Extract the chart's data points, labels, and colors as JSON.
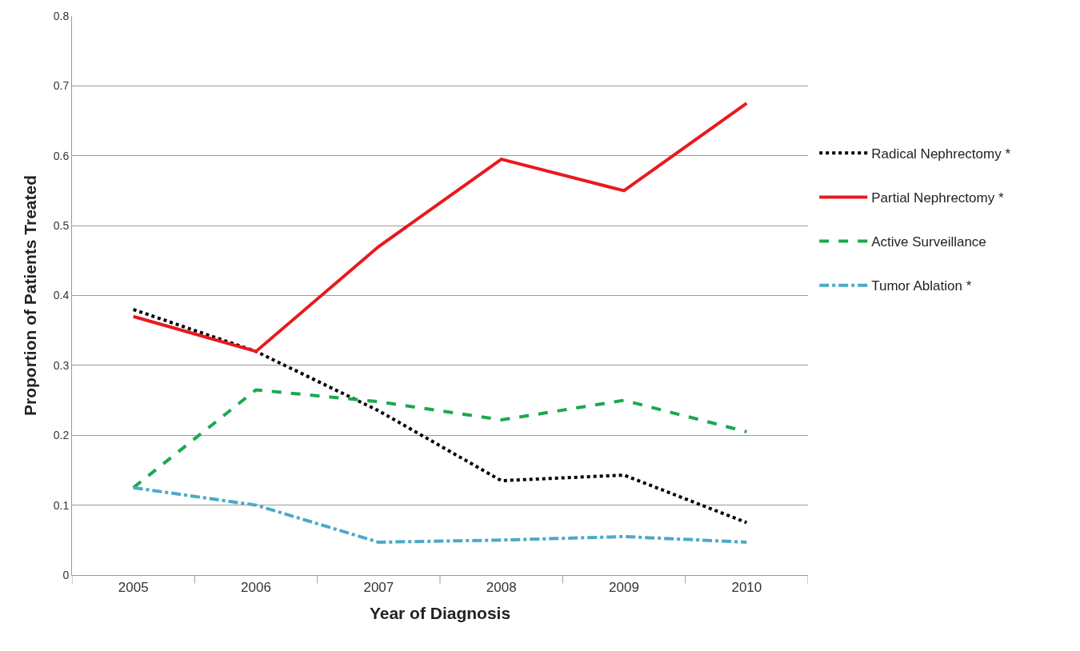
{
  "chart_data": {
    "type": "line",
    "xlabel": "Year of Diagnosis",
    "ylabel": "Proportion of Patients Treated",
    "categories": [
      "2005",
      "2006",
      "2007",
      "2008",
      "2009",
      "2010"
    ],
    "series": [
      {
        "name": "Radical Nephrectomy *",
        "color": "#000000",
        "line_style": "dotted",
        "values": [
          0.38,
          0.32,
          0.235,
          0.135,
          0.143,
          0.075
        ]
      },
      {
        "name": "Partial Nephrectomy *",
        "color": "#e8191e",
        "line_style": "solid",
        "values": [
          0.37,
          0.32,
          0.47,
          0.595,
          0.55,
          0.675
        ]
      },
      {
        "name": "Active Surveillance",
        "color": "#1aa84e",
        "line_style": "dashed",
        "values": [
          0.125,
          0.265,
          0.248,
          0.222,
          0.25,
          0.205
        ]
      },
      {
        "name": "Tumor Ablation *",
        "color": "#4aaac6",
        "line_style": "dashdot",
        "values": [
          0.125,
          0.1,
          0.047,
          0.05,
          0.055,
          0.047
        ]
      }
    ],
    "ylim": [
      0,
      0.8
    ],
    "yticks": [
      0,
      0.1,
      0.2,
      0.3,
      0.4,
      0.5,
      0.6,
      0.7,
      0.8
    ],
    "grid": "y",
    "legend": "right",
    "marker": "none"
  }
}
